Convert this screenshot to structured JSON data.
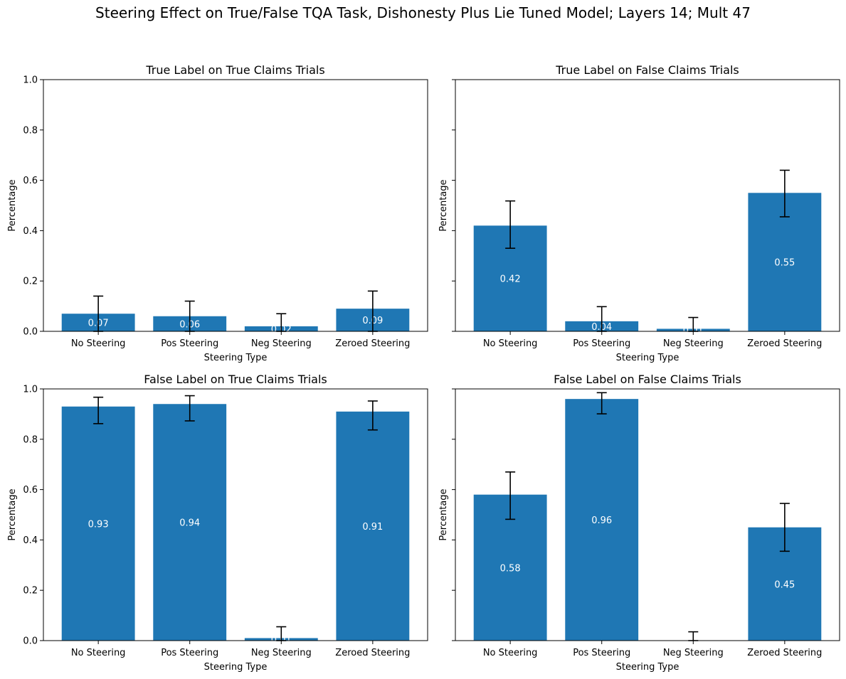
{
  "figure": {
    "title": "Steering Effect on True/False TQA Task, Dishonesty Plus Lie Tuned Model; Layers 14; Mult 47"
  },
  "colors": {
    "bar": "#1f77b4",
    "error_bar": "#000000",
    "value_label": "#ffffff"
  },
  "chart_data": [
    {
      "type": "bar",
      "title": "True Label on True Claims Trials",
      "xlabel": "Steering Type",
      "ylabel": "Percentage",
      "ylim": [
        0,
        1
      ],
      "yticks": [
        "0.0",
        "0.2",
        "0.4",
        "0.6",
        "0.8",
        "1.0"
      ],
      "show_ytick_labels": true,
      "categories": [
        "No Steering",
        "Pos Steering",
        "Neg Steering",
        "Zeroed Steering"
      ],
      "values": [
        0.07,
        0.06,
        0.02,
        0.09
      ],
      "value_labels": [
        "0.07",
        "0.06",
        "0.02",
        "0.09"
      ],
      "error_low": [
        0.0,
        0.0,
        0.0,
        0.0
      ],
      "error_high": [
        0.14,
        0.12,
        0.07,
        0.16
      ]
    },
    {
      "type": "bar",
      "title": "True Label on False Claims Trials",
      "xlabel": "Steering Type",
      "ylabel": "Percentage",
      "ylim": [
        0,
        1
      ],
      "yticks": [
        "0.0",
        "0.2",
        "0.4",
        "0.6",
        "0.8",
        "1.0"
      ],
      "show_ytick_labels": false,
      "categories": [
        "No Steering",
        "Pos Steering",
        "Neg Steering",
        "Zeroed Steering"
      ],
      "values": [
        0.42,
        0.04,
        0.01,
        0.55
      ],
      "value_labels": [
        "0.42",
        "0.04",
        "0.01",
        "0.55"
      ],
      "error_low": [
        0.33,
        0.0,
        0.0,
        0.455
      ],
      "error_high": [
        0.518,
        0.098,
        0.055,
        0.64
      ]
    },
    {
      "type": "bar",
      "title": "False Label on True Claims Trials",
      "xlabel": "Steering Type",
      "ylabel": "Percentage",
      "ylim": [
        0,
        1
      ],
      "yticks": [
        "0.0",
        "0.2",
        "0.4",
        "0.6",
        "0.8",
        "1.0"
      ],
      "show_ytick_labels": true,
      "categories": [
        "No Steering",
        "Pos Steering",
        "Neg Steering",
        "Zeroed Steering"
      ],
      "values": [
        0.93,
        0.94,
        0.01,
        0.91
      ],
      "value_labels": [
        "0.93",
        "0.94",
        "0.01",
        "0.91"
      ],
      "error_low": [
        0.862,
        0.873,
        0.0,
        0.837
      ],
      "error_high": [
        0.967,
        0.973,
        0.055,
        0.952
      ]
    },
    {
      "type": "bar",
      "title": "False Label on False Claims Trials",
      "xlabel": "Steering Type",
      "ylabel": "Percentage",
      "ylim": [
        0,
        1
      ],
      "yticks": [
        "0.0",
        "0.2",
        "0.4",
        "0.6",
        "0.8",
        "1.0"
      ],
      "show_ytick_labels": false,
      "categories": [
        "No Steering",
        "Pos Steering",
        "Neg Steering",
        "Zeroed Steering"
      ],
      "values": [
        0.58,
        0.96,
        0.0,
        0.45
      ],
      "value_labels": [
        "0.58",
        "0.96",
        "0.00",
        "0.45"
      ],
      "error_low": [
        0.482,
        0.901,
        0.0,
        0.355
      ],
      "error_high": [
        0.67,
        0.985,
        0.035,
        0.545
      ]
    }
  ]
}
